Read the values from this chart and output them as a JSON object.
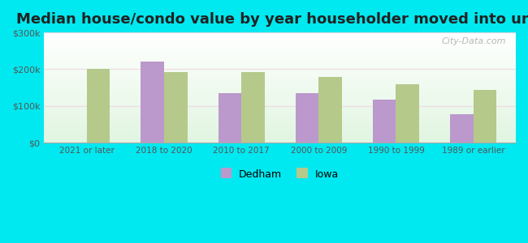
{
  "title": "Median house/condo value by year householder moved into unit",
  "categories": [
    "2021 or later",
    "2018 to 2020",
    "2010 to 2017",
    "2000 to 2009",
    "1990 to 1999",
    "1989 or earlier"
  ],
  "dedham_values": [
    null,
    220000,
    135000,
    135000,
    118000,
    78000
  ],
  "iowa_values": [
    200000,
    193000,
    193000,
    180000,
    160000,
    143000
  ],
  "dedham_color": "#bb99cc",
  "iowa_color": "#b5c98a",
  "background_outer": "#00e8f0",
  "ylim": [
    0,
    300000
  ],
  "yticks": [
    0,
    100000,
    200000,
    300000
  ],
  "ytick_labels": [
    "$0",
    "$100k",
    "$200k",
    "$300k"
  ],
  "bar_width": 0.3,
  "title_fontsize": 13,
  "legend_labels": [
    "Dedham",
    "Iowa"
  ],
  "watermark": "City-Data.com"
}
